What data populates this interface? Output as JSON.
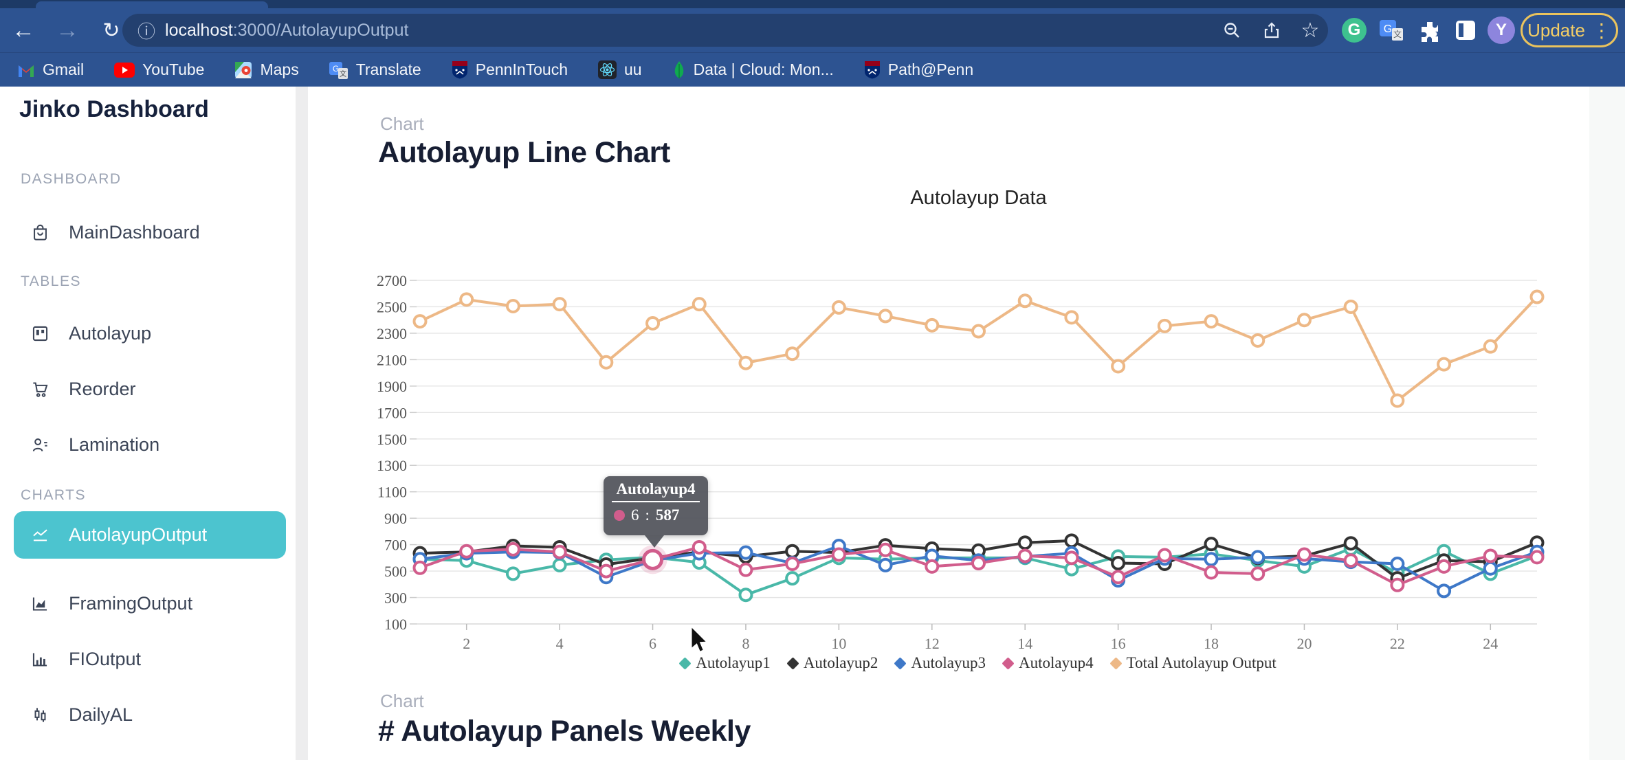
{
  "browser": {
    "toolbar": {
      "url_host": "localhost",
      "url_rest": ":3000/AutolayupOutput",
      "update_label": "Update",
      "menu_dots": "⋮",
      "avatar_initial": "Y"
    },
    "bookmarks": [
      {
        "label": "Gmail",
        "icon": "gmail-icon"
      },
      {
        "label": "YouTube",
        "icon": "youtube-icon"
      },
      {
        "label": "Maps",
        "icon": "maps-icon"
      },
      {
        "label": "Translate",
        "icon": "translate-icon"
      },
      {
        "label": "PennInTouch",
        "icon": "penn-shield-icon"
      },
      {
        "label": "uu",
        "icon": "react-icon"
      },
      {
        "label": "Data | Cloud: Mon...",
        "icon": "mongodb-icon"
      },
      {
        "label": "Path@Penn",
        "icon": "penn-shield-icon"
      }
    ]
  },
  "sidebar": {
    "title": "Jinko Dashboard",
    "active_bg": "#4cc4cf",
    "sections": [
      {
        "label": "DASHBOARD",
        "items": [
          {
            "label": "MainDashboard",
            "icon": "bag-icon",
            "active": false
          }
        ]
      },
      {
        "label": "TABLES",
        "items": [
          {
            "label": "Autolayup",
            "icon": "kanban-icon",
            "active": false
          },
          {
            "label": "Reorder",
            "icon": "cart-icon",
            "active": false
          },
          {
            "label": "Lamination",
            "icon": "user-list-icon",
            "active": false
          }
        ]
      },
      {
        "label": "CHARTS",
        "items": [
          {
            "label": "AutolayupOutput",
            "icon": "line-chart-icon",
            "active": true
          },
          {
            "label": "FramingOutput",
            "icon": "area-chart-icon",
            "active": false
          },
          {
            "label": "FIOutput",
            "icon": "bar-chart-icon",
            "active": false
          },
          {
            "label": "DailyAL",
            "icon": "candlestick-icon",
            "active": false
          }
        ]
      }
    ]
  },
  "main": {
    "section1": {
      "kicker": "Chart",
      "title": "Autolayup Line Chart"
    },
    "section2": {
      "kicker": "Chart",
      "title": "# Autolayup Panels Weekly"
    }
  },
  "chart_data": {
    "type": "line",
    "title": "Autolayup Data",
    "x": [
      1,
      2,
      3,
      4,
      5,
      6,
      7,
      8,
      9,
      10,
      11,
      12,
      13,
      14,
      15,
      16,
      17,
      18,
      19,
      20,
      21,
      22,
      23,
      24,
      25
    ],
    "xticks": [
      2,
      4,
      6,
      8,
      10,
      12,
      14,
      16,
      18,
      20,
      22,
      24
    ],
    "yticks": [
      100,
      300,
      500,
      700,
      900,
      1100,
      1300,
      1500,
      1700,
      1900,
      2100,
      2300,
      2500,
      2700
    ],
    "ylim": [
      100,
      2700
    ],
    "grid": true,
    "legend_position": "bottom",
    "series": [
      {
        "name": "Autolayup1",
        "color": "#49b8a8",
        "values": [
          590,
          580,
          480,
          545,
          585,
          605,
          565,
          320,
          445,
          600,
          590,
          600,
          600,
          600,
          515,
          610,
          605,
          630,
          580,
          535,
          670,
          485,
          650,
          480,
          615
        ]
      },
      {
        "name": "Autolayup2",
        "color": "#333333",
        "values": [
          635,
          645,
          690,
          680,
          550,
          600,
          645,
          610,
          650,
          640,
          695,
          670,
          655,
          715,
          730,
          560,
          555,
          705,
          600,
          615,
          710,
          445,
          580,
          570,
          715
        ]
      },
      {
        "name": "Autolayup3",
        "color": "#3e78c8",
        "values": [
          590,
          635,
          645,
          640,
          455,
          580,
          635,
          640,
          560,
          690,
          545,
          615,
          580,
          610,
          635,
          430,
          595,
          590,
          605,
          595,
          570,
          555,
          350,
          520,
          645
        ]
      },
      {
        "name": "Autolayup4",
        "color": "#d15d8c",
        "values": [
          525,
          650,
          665,
          645,
          500,
          587,
          680,
          510,
          555,
          625,
          660,
          535,
          560,
          615,
          600,
          455,
          620,
          490,
          480,
          625,
          580,
          395,
          535,
          615,
          605
        ]
      },
      {
        "name": "Total Autolayup Output",
        "color": "#edb886",
        "values": [
          2390,
          2555,
          2505,
          2520,
          2080,
          2375,
          2520,
          2075,
          2145,
          2495,
          2430,
          2360,
          2315,
          2545,
          2420,
          2050,
          2355,
          2390,
          2245,
          2400,
          2500,
          1790,
          2065,
          2200,
          2575
        ]
      }
    ],
    "tooltip": {
      "series": "Autolayup4",
      "x_label": "6",
      "value": "587",
      "separator": " : ",
      "color": "#d15d8c"
    },
    "emphasis": {
      "series_index": 3,
      "point_index": 5
    }
  }
}
